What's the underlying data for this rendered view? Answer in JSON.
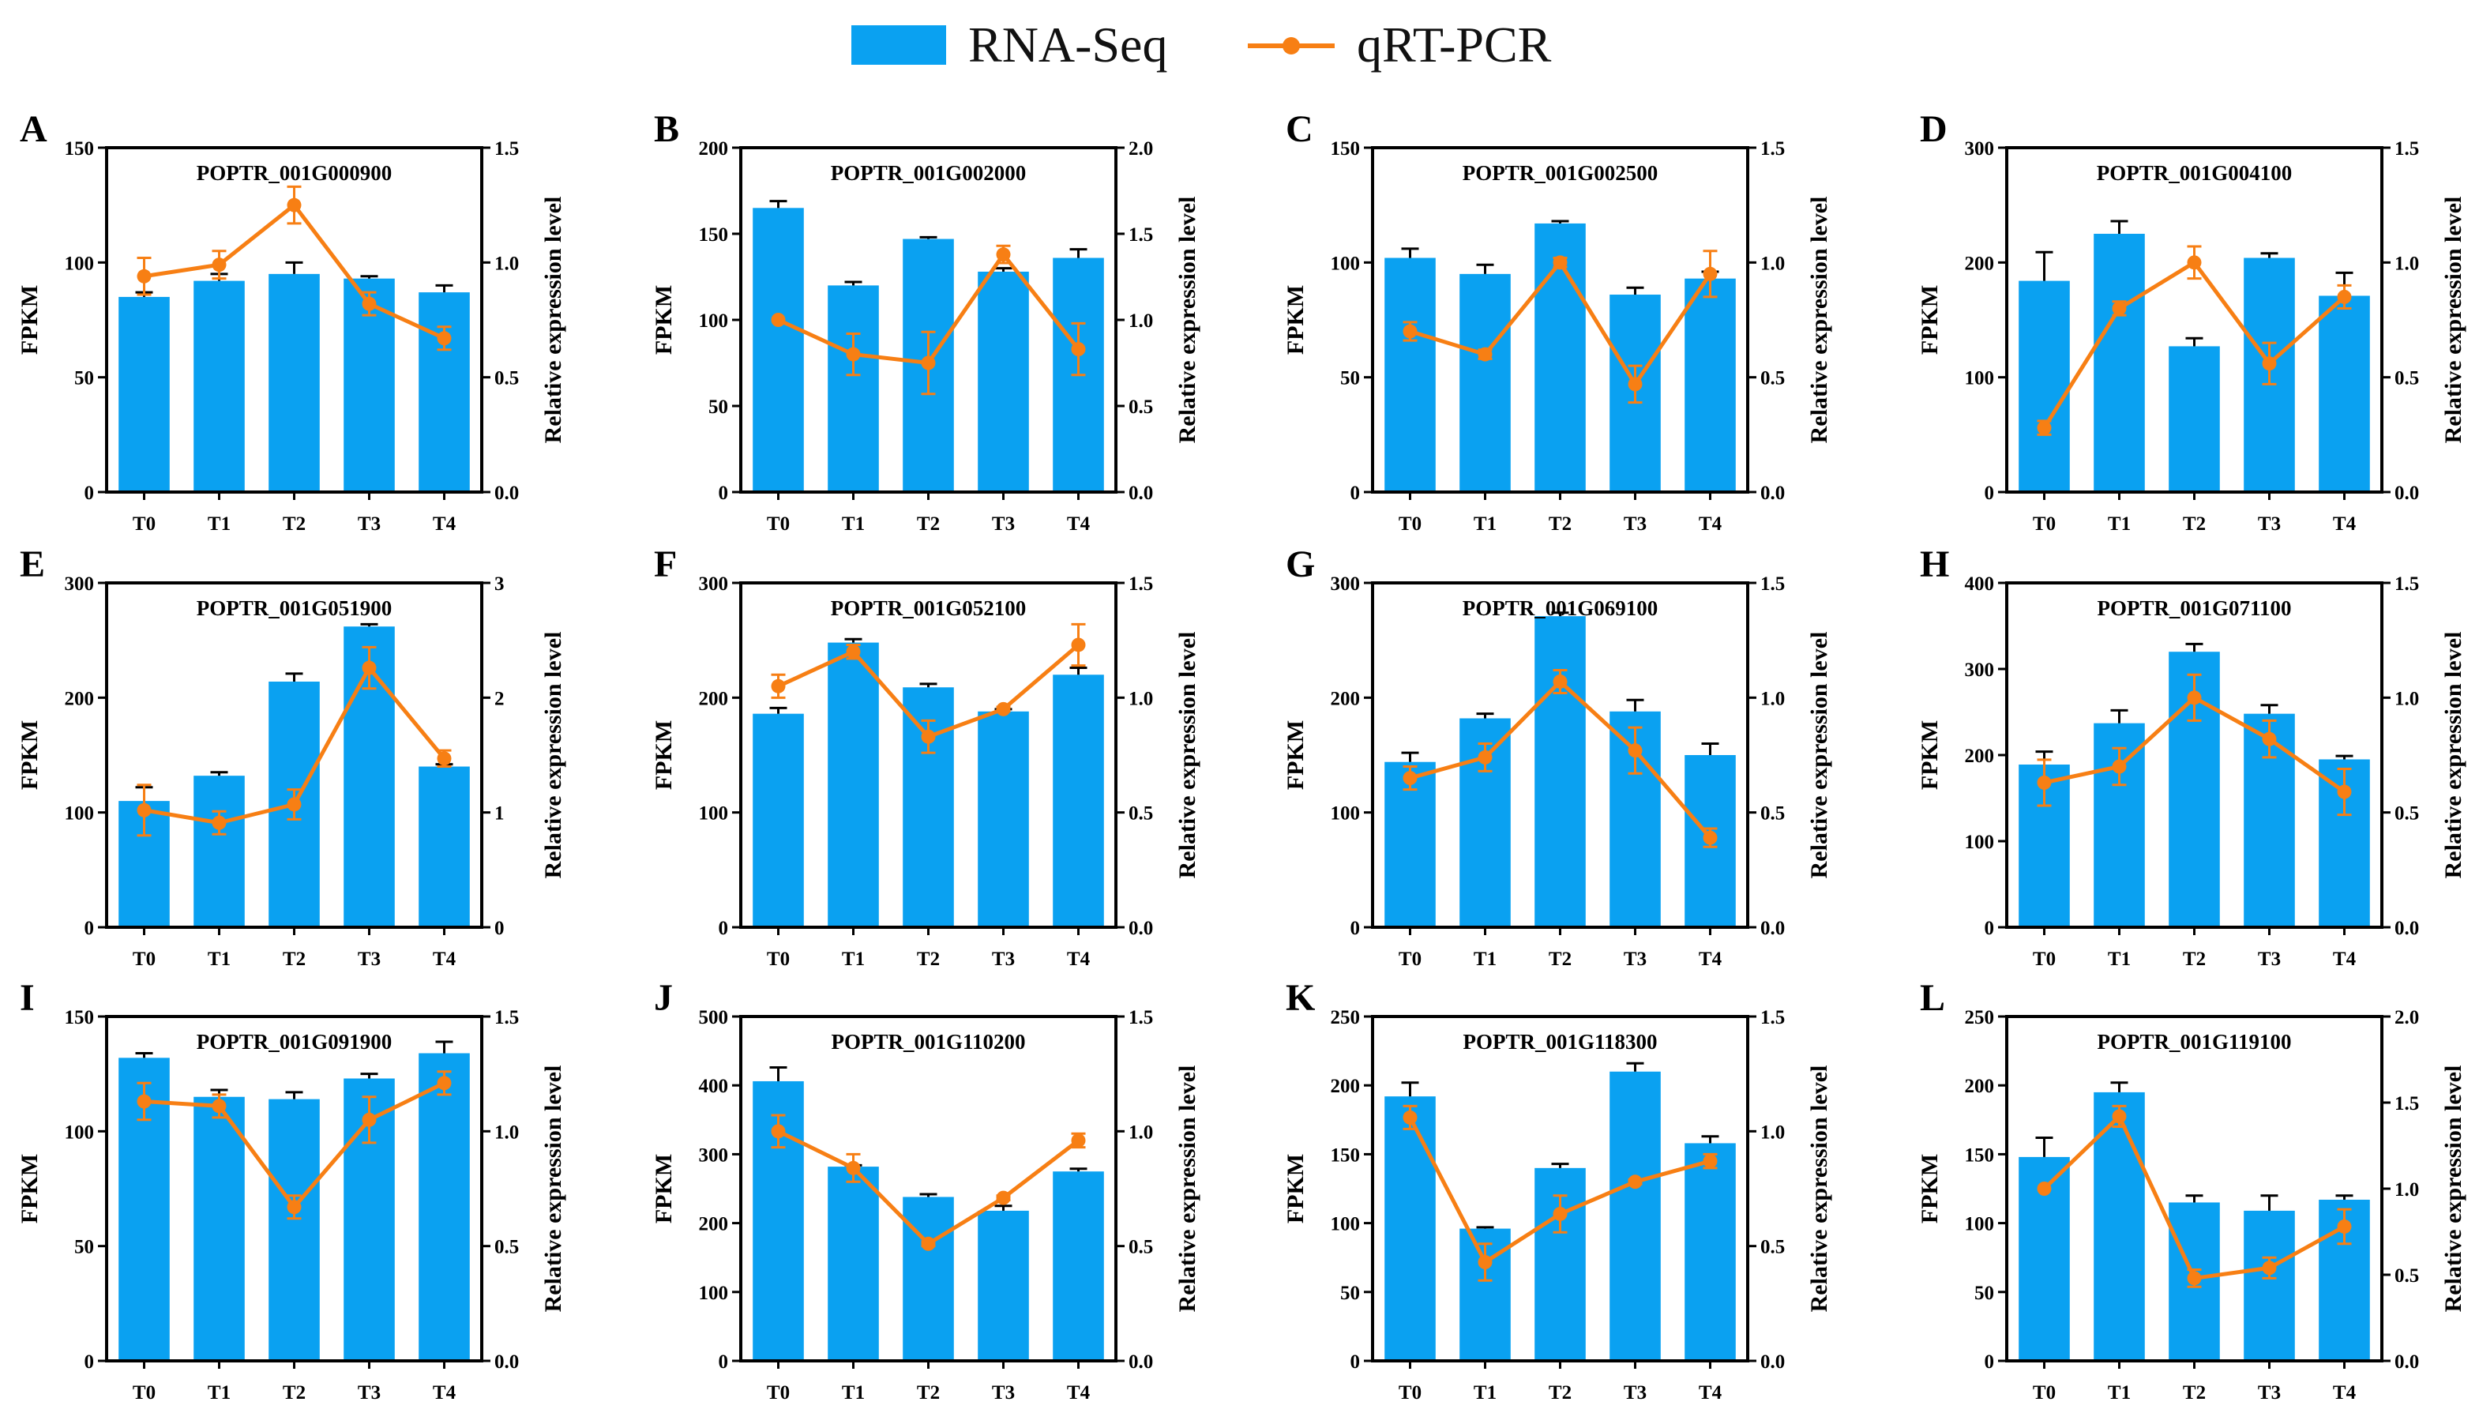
{
  "legend": {
    "bar_label": "RNA-Seq",
    "line_label": "qRT-PCR"
  },
  "colors": {
    "bar": "#0AA1F1",
    "line": "#F77F14",
    "axis": "#000000"
  },
  "chart_data": [
    {
      "type": "bar",
      "panel": "A",
      "title": "POPTR_001G000900",
      "xlabel": "",
      "ylabel": "FPKM",
      "y2label": "Relative expression level",
      "categories": [
        "T0",
        "T1",
        "T2",
        "T3",
        "T4"
      ],
      "ylim": [
        0,
        150
      ],
      "yticks": [
        0,
        50,
        100,
        150
      ],
      "y2lim": [
        0,
        1.5
      ],
      "y2ticks": [
        0.0,
        0.5,
        1.0,
        1.5
      ],
      "series": [
        {
          "name": "RNA-Seq",
          "axis": "left",
          "values": [
            85,
            92,
            95,
            93,
            87
          ],
          "errors": [
            2,
            3,
            5,
            1,
            3
          ]
        },
        {
          "name": "qRT-PCR",
          "axis": "right",
          "values": [
            0.94,
            0.99,
            1.25,
            0.82,
            0.67
          ],
          "errors": [
            0.08,
            0.06,
            0.08,
            0.05,
            0.05
          ]
        }
      ]
    },
    {
      "type": "bar",
      "panel": "B",
      "title": "POPTR_001G002000",
      "xlabel": "",
      "ylabel": "FPKM",
      "y2label": "Relative expression level",
      "categories": [
        "T0",
        "T1",
        "T2",
        "T3",
        "T4"
      ],
      "ylim": [
        0,
        200
      ],
      "yticks": [
        0,
        50,
        100,
        150,
        200
      ],
      "y2lim": [
        0,
        2.0
      ],
      "y2ticks": [
        0.0,
        0.5,
        1.0,
        1.5,
        2.0
      ],
      "series": [
        {
          "name": "RNA-Seq",
          "axis": "left",
          "values": [
            165,
            120,
            147,
            128,
            136
          ],
          "errors": [
            4,
            2,
            1,
            2,
            5
          ]
        },
        {
          "name": "qRT-PCR",
          "axis": "right",
          "values": [
            1.0,
            0.8,
            0.75,
            1.38,
            0.83
          ],
          "errors": [
            0.0,
            0.12,
            0.18,
            0.05,
            0.15
          ]
        }
      ]
    },
    {
      "type": "bar",
      "panel": "C",
      "title": "POPTR_001G002500",
      "xlabel": "",
      "ylabel": "FPKM",
      "y2label": "Relative expression level",
      "categories": [
        "T0",
        "T1",
        "T2",
        "T3",
        "T4"
      ],
      "ylim": [
        0,
        150
      ],
      "yticks": [
        0,
        50,
        100,
        150
      ],
      "y2lim": [
        0,
        1.5
      ],
      "y2ticks": [
        0.0,
        0.5,
        1.0,
        1.5
      ],
      "series": [
        {
          "name": "RNA-Seq",
          "axis": "left",
          "values": [
            102,
            95,
            117,
            86,
            93
          ],
          "errors": [
            4,
            4,
            1,
            3,
            3
          ]
        },
        {
          "name": "qRT-PCR",
          "axis": "right",
          "values": [
            0.7,
            0.6,
            1.0,
            0.47,
            0.95
          ],
          "errors": [
            0.04,
            0.02,
            0.02,
            0.08,
            0.1
          ]
        }
      ]
    },
    {
      "type": "bar",
      "panel": "D",
      "title": "POPTR_001G004100",
      "xlabel": "",
      "ylabel": "FPKM",
      "y2label": "Relative expression level",
      "categories": [
        "T0",
        "T1",
        "T2",
        "T3",
        "T4"
      ],
      "ylim": [
        0,
        300
      ],
      "yticks": [
        0,
        100,
        200,
        300
      ],
      "y2lim": [
        0,
        1.5
      ],
      "y2ticks": [
        0.0,
        0.5,
        1.0,
        1.5
      ],
      "series": [
        {
          "name": "RNA-Seq",
          "axis": "left",
          "values": [
            184,
            225,
            127,
            204,
            171
          ],
          "errors": [
            25,
            11,
            7,
            4,
            20
          ]
        },
        {
          "name": "qRT-PCR",
          "axis": "right",
          "values": [
            0.28,
            0.8,
            1.0,
            0.56,
            0.85
          ],
          "errors": [
            0.03,
            0.03,
            0.07,
            0.09,
            0.05
          ]
        }
      ]
    },
    {
      "type": "bar",
      "panel": "E",
      "title": "POPTR_001G051900",
      "xlabel": "",
      "ylabel": "FPKM",
      "y2label": "Relative expression level",
      "categories": [
        "T0",
        "T1",
        "T2",
        "T3",
        "T4"
      ],
      "ylim": [
        0,
        300
      ],
      "yticks": [
        0,
        100,
        200,
        300
      ],
      "y2lim": [
        0,
        3
      ],
      "y2ticks": [
        0,
        1,
        2,
        3
      ],
      "series": [
        {
          "name": "RNA-Seq",
          "axis": "left",
          "values": [
            110,
            132,
            214,
            262,
            140
          ],
          "errors": [
            12,
            3,
            7,
            2,
            2
          ]
        },
        {
          "name": "qRT-PCR",
          "axis": "right",
          "values": [
            1.02,
            0.91,
            1.07,
            2.26,
            1.47
          ],
          "errors": [
            0.22,
            0.1,
            0.13,
            0.18,
            0.07
          ]
        }
      ]
    },
    {
      "type": "bar",
      "panel": "F",
      "title": "POPTR_001G052100",
      "xlabel": "",
      "ylabel": "FPKM",
      "y2label": "Relative expression level",
      "categories": [
        "T0",
        "T1",
        "T2",
        "T3",
        "T4"
      ],
      "ylim": [
        0,
        300
      ],
      "yticks": [
        0,
        100,
        200,
        300
      ],
      "y2lim": [
        0,
        1.5
      ],
      "y2ticks": [
        0.0,
        0.5,
        1.0,
        1.5
      ],
      "series": [
        {
          "name": "RNA-Seq",
          "axis": "left",
          "values": [
            186,
            248,
            209,
            188,
            220
          ],
          "errors": [
            5,
            3,
            3,
            2,
            6
          ]
        },
        {
          "name": "qRT-PCR",
          "axis": "right",
          "values": [
            1.05,
            1.2,
            0.83,
            0.95,
            1.23
          ],
          "errors": [
            0.05,
            0.03,
            0.07,
            0.01,
            0.09
          ]
        }
      ]
    },
    {
      "type": "bar",
      "panel": "G",
      "title": "POPTR_001G069100",
      "xlabel": "",
      "ylabel": "FPKM",
      "y2label": "Relative expression level",
      "categories": [
        "T0",
        "T1",
        "T2",
        "T3",
        "T4"
      ],
      "ylim": [
        0,
        300
      ],
      "yticks": [
        0,
        100,
        200,
        300
      ],
      "y2lim": [
        0,
        1.5
      ],
      "y2ticks": [
        0.0,
        0.5,
        1.0,
        1.5
      ],
      "series": [
        {
          "name": "RNA-Seq",
          "axis": "left",
          "values": [
            144,
            182,
            271,
            188,
            150
          ],
          "errors": [
            8,
            4,
            3,
            10,
            10
          ]
        },
        {
          "name": "qRT-PCR",
          "axis": "right",
          "values": [
            0.65,
            0.74,
            1.07,
            0.77,
            0.39
          ],
          "errors": [
            0.05,
            0.06,
            0.05,
            0.1,
            0.04
          ]
        }
      ]
    },
    {
      "type": "bar",
      "panel": "H",
      "title": "POPTR_001G071100",
      "xlabel": "",
      "ylabel": "FPKM",
      "y2label": "Relative expression level",
      "categories": [
        "T0",
        "T1",
        "T2",
        "T3",
        "T4"
      ],
      "ylim": [
        0,
        400
      ],
      "yticks": [
        0,
        100,
        200,
        300,
        400
      ],
      "y2lim": [
        0,
        1.5
      ],
      "y2ticks": [
        0.0,
        0.5,
        1.0,
        1.5
      ],
      "series": [
        {
          "name": "RNA-Seq",
          "axis": "left",
          "values": [
            189,
            237,
            320,
            248,
            195
          ],
          "errors": [
            15,
            15,
            9,
            10,
            4
          ]
        },
        {
          "name": "qRT-PCR",
          "axis": "right",
          "values": [
            0.63,
            0.7,
            1.0,
            0.82,
            0.59
          ],
          "errors": [
            0.1,
            0.08,
            0.1,
            0.08,
            0.1
          ]
        }
      ]
    },
    {
      "type": "bar",
      "panel": "I",
      "title": "POPTR_001G091900",
      "xlabel": "",
      "ylabel": "FPKM",
      "y2label": "Relative expression level",
      "categories": [
        "T0",
        "T1",
        "T2",
        "T3",
        "T4"
      ],
      "ylim": [
        0,
        150
      ],
      "yticks": [
        0,
        50,
        100,
        150
      ],
      "y2lim": [
        0,
        1.5
      ],
      "y2ticks": [
        0.0,
        0.5,
        1.0,
        1.5
      ],
      "series": [
        {
          "name": "RNA-Seq",
          "axis": "left",
          "values": [
            132,
            115,
            114,
            123,
            134
          ],
          "errors": [
            2,
            3,
            3,
            2,
            5
          ]
        },
        {
          "name": "qRT-PCR",
          "axis": "right",
          "values": [
            1.13,
            1.11,
            0.67,
            1.05,
            1.21
          ],
          "errors": [
            0.08,
            0.05,
            0.05,
            0.1,
            0.05
          ]
        }
      ]
    },
    {
      "type": "bar",
      "panel": "J",
      "title": "POPTR_001G110200",
      "xlabel": "",
      "ylabel": "FPKM",
      "y2label": "Relative expression level",
      "categories": [
        "T0",
        "T1",
        "T2",
        "T3",
        "T4"
      ],
      "ylim": [
        0,
        500
      ],
      "yticks": [
        0,
        100,
        200,
        300,
        400,
        500
      ],
      "y2lim": [
        0,
        1.5
      ],
      "y2ticks": [
        0.0,
        0.5,
        1.0,
        1.5
      ],
      "series": [
        {
          "name": "RNA-Seq",
          "axis": "left",
          "values": [
            406,
            282,
            238,
            218,
            275
          ],
          "errors": [
            20,
            2,
            4,
            7,
            4
          ]
        },
        {
          "name": "qRT-PCR",
          "axis": "right",
          "values": [
            1.0,
            0.84,
            0.51,
            0.71,
            0.96
          ],
          "errors": [
            0.07,
            0.06,
            0.01,
            0.01,
            0.03
          ]
        }
      ]
    },
    {
      "type": "bar",
      "panel": "K",
      "title": "POPTR_001G118300",
      "xlabel": "",
      "ylabel": "FPKM",
      "y2label": "Relative expression level",
      "categories": [
        "T0",
        "T1",
        "T2",
        "T3",
        "T4"
      ],
      "ylim": [
        0,
        250
      ],
      "yticks": [
        0,
        50,
        100,
        150,
        200,
        250
      ],
      "y2lim": [
        0,
        1.5
      ],
      "y2ticks": [
        0.0,
        0.5,
        1.0,
        1.5
      ],
      "series": [
        {
          "name": "RNA-Seq",
          "axis": "left",
          "values": [
            192,
            96,
            140,
            210,
            158
          ],
          "errors": [
            10,
            1,
            3,
            6,
            5
          ]
        },
        {
          "name": "qRT-PCR",
          "axis": "right",
          "values": [
            1.06,
            0.43,
            0.64,
            0.78,
            0.87
          ],
          "errors": [
            0.05,
            0.08,
            0.08,
            0.01,
            0.03
          ]
        }
      ]
    },
    {
      "type": "bar",
      "panel": "L",
      "title": "POPTR_001G119100",
      "xlabel": "",
      "ylabel": "FPKM",
      "y2label": "Relative expression level",
      "categories": [
        "T0",
        "T1",
        "T2",
        "T3",
        "T4"
      ],
      "ylim": [
        0,
        250
      ],
      "yticks": [
        0,
        50,
        100,
        150,
        200,
        250
      ],
      "y2lim": [
        0,
        2.0
      ],
      "y2ticks": [
        0.0,
        0.5,
        1.0,
        1.5,
        2.0
      ],
      "series": [
        {
          "name": "RNA-Seq",
          "axis": "left",
          "values": [
            148,
            195,
            115,
            109,
            117
          ],
          "errors": [
            14,
            7,
            5,
            11,
            3
          ]
        },
        {
          "name": "qRT-PCR",
          "axis": "right",
          "values": [
            1.0,
            1.42,
            0.48,
            0.54,
            0.78
          ],
          "errors": [
            0.0,
            0.06,
            0.05,
            0.06,
            0.1
          ]
        }
      ]
    }
  ]
}
